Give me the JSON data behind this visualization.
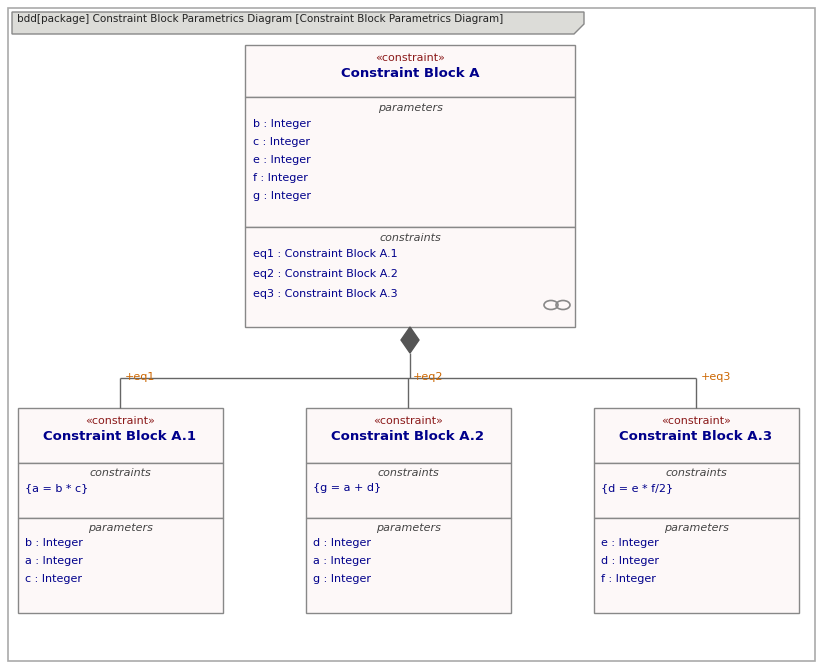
{
  "bg_color": "#fdf8f8",
  "border_color": "#888888",
  "outer_border_color": "#aaaaaa",
  "title_tab": "bdd[package] Constraint Block Parametrics Diagram [Constraint Block Parametrics Diagram]",
  "tab_bg": "#dcdcd8",
  "tab_text_color": "#222222",
  "stereotype_color": "#8B1A1A",
  "name_color": "#00008B",
  "section_label_color": "#444444",
  "item_color": "#00008B",
  "line_color": "#666666",
  "diamond_color": "#555555",
  "label_color": "#cc6600",
  "main_block": {
    "stereotype": "«constraint»",
    "name": "Constraint Block A",
    "section1_label": "parameters",
    "section1_items": [
      "b : Integer",
      "c : Integer",
      "e : Integer",
      "f : Integer",
      "g : Integer"
    ],
    "section2_label": "constraints",
    "section2_items": [
      "eq1 : Constraint Block A.1",
      "eq2 : Constraint Block A.2",
      "eq3 : Constraint Block A.3"
    ]
  },
  "child_blocks": [
    {
      "stereotype": "«constraint»",
      "name": "Constraint Block A.1",
      "section1_label": "constraints",
      "section1_items": [
        "{a = b * c}"
      ],
      "section2_label": "parameters",
      "section2_items": [
        "b : Integer",
        "a : Integer",
        "c : Integer"
      ],
      "connector_label": "+eq1"
    },
    {
      "stereotype": "«constraint»",
      "name": "Constraint Block A.2",
      "section1_label": "constraints",
      "section1_items": [
        "{g = a + d}"
      ],
      "section2_label": "parameters",
      "section2_items": [
        "d : Integer",
        "a : Integer",
        "g : Integer"
      ],
      "connector_label": "+eq2"
    },
    {
      "stereotype": "«constraint»",
      "name": "Constraint Block A.3",
      "section1_label": "constraints",
      "section1_items": [
        "{d = e * f/2}"
      ],
      "section2_label": "parameters",
      "section2_items": [
        "e : Integer",
        "d : Integer",
        "f : Integer"
      ],
      "connector_label": "+eq3"
    }
  ]
}
